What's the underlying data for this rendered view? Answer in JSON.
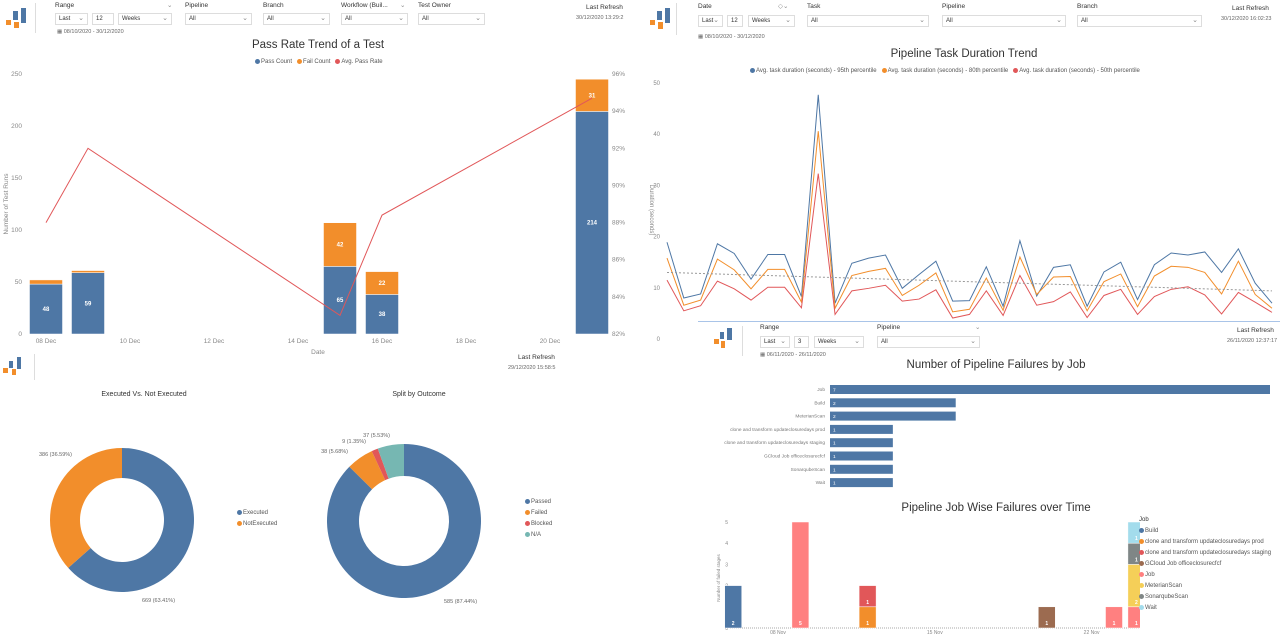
{
  "colors": {
    "blue": "#4e77a5",
    "orange": "#f28e2b",
    "red": "#e15759",
    "teal": "#76b7b2",
    "job": "#ff8080",
    "yellow": "#f5cf58",
    "gray": "#7f8686",
    "brown": "#9c6b50",
    "lightblue": "#a3dcec",
    "brown_dark": "#8b6a55"
  },
  "panel_tl": {
    "logo": "bar-logo-icon",
    "range_label": "Range",
    "range_mode": "Last",
    "range_count": "12",
    "range_unit": "Weeks",
    "pipeline_label": "Pipeline",
    "pipeline_value": "All",
    "branch_label": "Branch",
    "branch_value": "All",
    "workflow_label": "Workflow (Buil...",
    "workflow_value": "All",
    "owner_label": "Test Owner",
    "owner_value": "All",
    "date_range": "08/10/2020 - 30/12/2020",
    "last_refresh_label": "Last Refresh",
    "last_refresh": "30/12/2020 13:29:2"
  },
  "panel_tr": {
    "logo": "bar-logo-icon",
    "date_label": "Date",
    "range_mode": "Last",
    "range_count": "12",
    "range_unit": "Weeks",
    "task_label": "Task",
    "task_value": "All",
    "pipeline_label": "Pipeline",
    "pipeline_value": "All",
    "branch_label": "Branch",
    "branch_value": "All",
    "date_range": "08/10/2020 - 30/12/2020",
    "last_refresh_label": "Last Refresh",
    "last_refresh": "30/12/2020 16:02:23"
  },
  "panel_mr": {
    "logo": "bar-logo-icon",
    "range_label": "Range",
    "range_mode": "Last",
    "range_count": "3",
    "range_unit": "Weeks",
    "pipeline_label": "Pipeline",
    "pipeline_value": "All",
    "date_range": "06/11/2020 - 26/11/2020",
    "last_refresh_label": "Last Refresh",
    "last_refresh": "26/11/2020 12:37:17"
  },
  "panel_bl": {
    "logo": "bar-logo-icon",
    "last_refresh_label": "Last Refresh",
    "last_refresh": "29/12/2020 15:58:5"
  },
  "chart_data": [
    {
      "type": "bar",
      "stacked": true,
      "title": "Pass Rate Trend of a Test",
      "xlabel": "Date",
      "ylabel": "Number of Test Runs",
      "ylim": [
        0,
        250
      ],
      "y_ticks": [
        "0",
        "50",
        "100",
        "150",
        "200",
        "250"
      ],
      "y2lim": [
        82,
        96
      ],
      "y2_ticks": [
        "82%",
        "84%",
        "86%",
        "88%",
        "90%",
        "92%",
        "94%",
        "96%"
      ],
      "x_ticks": [
        "08 Dec",
        "10 Dec",
        "12 Dec",
        "14 Dec",
        "16 Dec",
        "18 Dec",
        "20 Dec"
      ],
      "categories": [
        "08 Dec",
        "09 Dec",
        "15 Dec",
        "16 Dec",
        "21 Dec"
      ],
      "series": [
        {
          "name": "Pass Count",
          "values": [
            48,
            59,
            65,
            38,
            214
          ],
          "labels": [
            "48",
            "59",
            "65",
            "38",
            "214"
          ]
        },
        {
          "name": "Fail Count",
          "values": [
            4,
            2,
            42,
            22,
            31
          ],
          "labels": [
            "",
            "",
            "42",
            "22",
            "31"
          ]
        },
        {
          "name": "Avg. Pass Rate",
          "type": "line",
          "axis": "right",
          "values": [
            88.0,
            92.0,
            83.0,
            88.4,
            94.7
          ]
        }
      ],
      "legend": "top"
    },
    {
      "type": "line",
      "title": "Pipeline Task Duration Trend",
      "ylabel": "Duration (seconds)",
      "ylim": [
        0,
        50
      ],
      "y_ticks": [
        "0",
        "10",
        "20",
        "30",
        "40",
        "50"
      ],
      "legend": "top",
      "series": [
        {
          "name": "Avg. task duration (seconds) - 95th percentile",
          "values": [
            18.9,
            8,
            8.8,
            18.6,
            16.7,
            11.7,
            16.5,
            16.5,
            8.3,
            47.7,
            7,
            14.8,
            15.8,
            16.4,
            9.9,
            12.6,
            15.2,
            7.4,
            7.5,
            14.1,
            6.4,
            19.2,
            8.4,
            14,
            14.5,
            6.4,
            13.1,
            15,
            7.7,
            14.5,
            16.8,
            16.4,
            17,
            13,
            17.6,
            10.9,
            7
          ]
        },
        {
          "name": "Avg. task duration (seconds) - 80th percentile",
          "values": [
            15.8,
            6.6,
            7.6,
            15.6,
            13.5,
            9.8,
            13.6,
            13.6,
            7.2,
            40.6,
            6,
            12.4,
            13.2,
            13.8,
            8.5,
            10.5,
            12.9,
            5.3,
            5.8,
            11.9,
            5.6,
            16,
            8.7,
            12.1,
            12.2,
            5.5,
            11.2,
            12.7,
            6.3,
            12.3,
            14.2,
            14,
            13,
            8.8,
            15.2,
            8.7,
            6
          ]
        },
        {
          "name": "Avg. task duration (seconds) - 50th percentile",
          "values": [
            11.5,
            5.5,
            6.5,
            11.3,
            9.8,
            7.6,
            10.1,
            10.1,
            6.1,
            32.3,
            4.8,
            9.4,
            9.9,
            10.5,
            7.4,
            7.8,
            9.6,
            4.1,
            4.8,
            9.4,
            4.6,
            12.4,
            6.6,
            7.3,
            9.2,
            4.2,
            8.5,
            9.7,
            4.8,
            8.3,
            9.7,
            10.2,
            8.6,
            4.9,
            9.1,
            7.2,
            5.2
          ]
        }
      ],
      "trend": {
        "start": 13,
        "end": 9.4
      }
    },
    {
      "type": "bar",
      "orientation": "horizontal",
      "title": "Number of Pipeline Failures by Job",
      "xlim": [
        0,
        7
      ],
      "categories": [
        "Job",
        "Build",
        "MeterianScan",
        "clone and transform updateclosuredays prod",
        "clone and transform updateclosuredays staging",
        "GCloud Job officeclosurecfcf",
        "SonarqubeScan",
        "Wait"
      ],
      "values": [
        7,
        2,
        2,
        1,
        1,
        1,
        1,
        1
      ]
    },
    {
      "type": "bar",
      "stacked": true,
      "title": "Pipeline Job Wise Failures over Time",
      "ylabel": "Number of failed stages",
      "ylim": [
        0,
        5
      ],
      "y_ticks": [
        "0",
        "1",
        "2",
        "3",
        "4",
        "5"
      ],
      "x_ticks": [
        "08 Nov",
        "15 Nov",
        "22 Nov"
      ],
      "legend_title": "Job",
      "legend": "right",
      "legend_items": [
        {
          "name": "Build",
          "color": "blue"
        },
        {
          "name": "clone and transform updateclosuredays prod",
          "color": "orange"
        },
        {
          "name": "clone and transform updateclosuredays staging",
          "color": "red"
        },
        {
          "name": "GCloud Job officeclosurecfcf",
          "color": "brown"
        },
        {
          "name": "Job",
          "color": "job"
        },
        {
          "name": "MeterianScan",
          "color": "yellow"
        },
        {
          "name": "SonarqubeScan",
          "color": "gray"
        },
        {
          "name": "Wait",
          "color": "lightblue"
        }
      ],
      "bars": [
        {
          "date": "06 Nov",
          "stack": [
            {
              "job": "Build",
              "value": 2
            }
          ]
        },
        {
          "date": "09 Nov",
          "stack": [
            {
              "job": "Job",
              "value": 5
            }
          ]
        },
        {
          "date": "12 Nov",
          "stack": [
            {
              "job": "clone and transform updateclosuredays prod",
              "value": 1
            },
            {
              "job": "clone and transform updateclosuredays staging",
              "value": 1
            }
          ]
        },
        {
          "date": "20 Nov",
          "stack": [
            {
              "job": "GCloud Job officeclosurecfcf",
              "value": 1
            }
          ]
        },
        {
          "date": "23 Nov",
          "stack": [
            {
              "job": "Job",
              "value": 1
            }
          ]
        },
        {
          "date": "24 Nov",
          "stack": [
            {
              "job": "Job",
              "value": 1
            },
            {
              "job": "MeterianScan",
              "value": 2
            },
            {
              "job": "SonarqubeScan",
              "value": 1
            },
            {
              "job": "Wait",
              "value": 1
            }
          ]
        }
      ]
    },
    {
      "type": "pie",
      "donut": true,
      "title": "Executed Vs. Not Executed",
      "legend": "right",
      "slices": [
        {
          "name": "Executed",
          "value": 669,
          "label": "669 (63.41%)",
          "color": "blue"
        },
        {
          "name": "NotExecuted",
          "value": 386,
          "label": "386 (36.59%)",
          "color": "orange"
        }
      ]
    },
    {
      "type": "pie",
      "donut": true,
      "title": "Split by Outcome",
      "legend": "right",
      "slices": [
        {
          "name": "Passed",
          "value": 585,
          "label": "585 (87.44%)",
          "color": "blue"
        },
        {
          "name": "Failed",
          "value": 38,
          "label": "38 (5.68%)",
          "color": "orange"
        },
        {
          "name": "Blocked",
          "value": 9,
          "label": "9 (1.35%)",
          "color": "red"
        },
        {
          "name": "N/A",
          "value": 37,
          "label": "37 (5.53%)",
          "color": "teal"
        }
      ]
    }
  ]
}
